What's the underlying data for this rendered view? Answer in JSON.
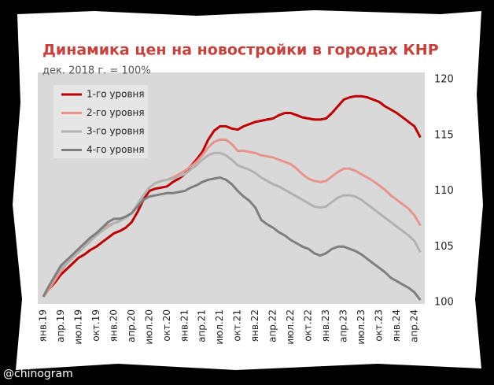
{
  "chart_data": {
    "type": "line",
    "title": "Динамика цен на новостройки в городах КНР",
    "subtitle": "дек. 2018 г. = 100%",
    "credit": "@chinogram",
    "categories": [
      "янв.19",
      null,
      null,
      "апр.19",
      null,
      null,
      "июл.19",
      null,
      null,
      "окт.19",
      null,
      null,
      "янв.20",
      null,
      null,
      "апр.20",
      null,
      null,
      "июл.20",
      null,
      null,
      "окт.20",
      null,
      null,
      "янв.21",
      null,
      null,
      "апр.21",
      null,
      null,
      "июл.21",
      null,
      null,
      "окт.21",
      null,
      null,
      "янв.22",
      null,
      null,
      "апр.22",
      null,
      null,
      "июл.22",
      null,
      null,
      "окт.22",
      null,
      null,
      "янв.23",
      null,
      null,
      "апр.23",
      null,
      null,
      "июл.23",
      null,
      null,
      "окт.23",
      null,
      null,
      "янв.24",
      null,
      null,
      "апр.24",
      null
    ],
    "series": [
      {
        "name": "1-го уровня",
        "color": "#c00000",
        "values": [
          100.5,
          101.2,
          101.8,
          102.5,
          103,
          103.5,
          104,
          104.3,
          104.7,
          105,
          105.4,
          105.8,
          106.2,
          106.4,
          106.7,
          107.2,
          108.1,
          109.2,
          110,
          110.2,
          110.3,
          110.4,
          110.8,
          111.1,
          111.5,
          112.2,
          112.8,
          113.5,
          114.6,
          115.4,
          115.8,
          115.8,
          115.6,
          115.5,
          115.8,
          116,
          116.2,
          116.3,
          116.4,
          116.5,
          116.8,
          117,
          117,
          116.8,
          116.6,
          116.5,
          116.4,
          116.4,
          116.5,
          117.0,
          117.6,
          118.2,
          118.4,
          118.5,
          118.5,
          118.4,
          118.2,
          118,
          117.6,
          117.3,
          117,
          116.6,
          116.2,
          115.8,
          114.8
        ]
      },
      {
        "name": "2-го уровня",
        "color": "#e8948c",
        "values": [
          100.5,
          101.2,
          102,
          102.8,
          103.5,
          104.2,
          104.8,
          105.3,
          105.8,
          106.2,
          106.6,
          106.9,
          107.1,
          107.3,
          107.6,
          108,
          108.8,
          109.6,
          110.3,
          110.7,
          110.9,
          111,
          111.2,
          111.5,
          111.8,
          112.2,
          112.6,
          113.2,
          113.9,
          114.4,
          114.6,
          114.6,
          114.2,
          113.6,
          113.6,
          113.5,
          113.4,
          113.2,
          113.1,
          113,
          112.8,
          112.6,
          112.4,
          112,
          111.5,
          111.1,
          110.9,
          110.8,
          110.9,
          111.3,
          111.7,
          112,
          112,
          111.8,
          111.5,
          111.2,
          110.9,
          110.5,
          110.1,
          109.6,
          109.2,
          108.8,
          108.4,
          107.8,
          106.9
        ]
      },
      {
        "name": "3-го уровня",
        "color": "#b2b2b2",
        "values": [
          100.5,
          101.5,
          102.3,
          103,
          103.5,
          104,
          104.5,
          105,
          105.5,
          106,
          106.4,
          106.8,
          107.1,
          107.3,
          107.6,
          108,
          108.8,
          109.6,
          110.3,
          110.7,
          110.9,
          111,
          111.1,
          111.3,
          111.5,
          111.9,
          112.3,
          112.8,
          113.2,
          113.4,
          113.4,
          113.2,
          112.8,
          112.3,
          112.1,
          111.9,
          111.6,
          111.2,
          110.9,
          110.6,
          110.4,
          110.1,
          109.8,
          109.5,
          109.2,
          108.9,
          108.6,
          108.5,
          108.6,
          109,
          109.4,
          109.6,
          109.6,
          109.5,
          109.2,
          108.8,
          108.4,
          108,
          107.6,
          107.2,
          106.8,
          106.4,
          106,
          105.5,
          104.5
        ]
      },
      {
        "name": "4-го уровня",
        "color": "#7f7f7f",
        "values": [
          100.5,
          101.5,
          102.4,
          103.3,
          103.8,
          104.3,
          104.8,
          105.3,
          105.8,
          106.2,
          106.7,
          107.2,
          107.5,
          107.5,
          107.7,
          108,
          108.6,
          109.2,
          109.5,
          109.6,
          109.7,
          109.8,
          109.8,
          109.9,
          110,
          110.3,
          110.5,
          110.8,
          111,
          111.1,
          111.2,
          111,
          110.6,
          110,
          109.5,
          109.1,
          108.5,
          107.4,
          107,
          106.7,
          106.3,
          106,
          105.6,
          105.3,
          105,
          104.8,
          104.4,
          104.2,
          104.4,
          104.8,
          105,
          105,
          104.8,
          104.6,
          104.3,
          103.9,
          103.5,
          103.1,
          102.7,
          102.2,
          101.9,
          101.6,
          101.3,
          100.9,
          100.2
        ]
      }
    ],
    "ylim": [
      100,
      120
    ],
    "yticks": [
      100,
      105,
      110,
      115,
      120
    ],
    "grid": false,
    "legend": "upper left"
  }
}
